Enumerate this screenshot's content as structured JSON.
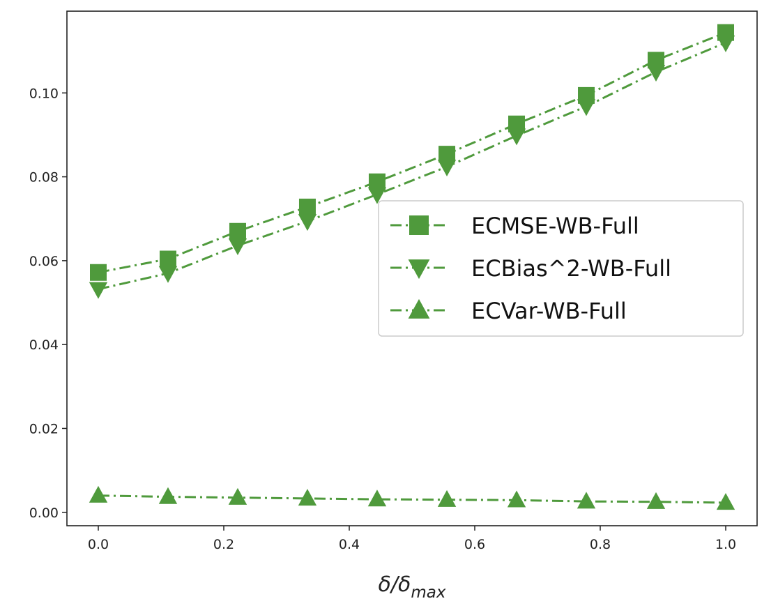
{
  "chart_data": {
    "type": "line",
    "title": "",
    "xlabel": "δ/δ",
    "xlabel_sub": "max",
    "ylabel": "",
    "x": [
      0.0,
      0.1111,
      0.2222,
      0.3333,
      0.4444,
      0.5556,
      0.6667,
      0.7778,
      0.8889,
      1.0
    ],
    "xlim": [
      -0.05,
      1.05
    ],
    "ylim": [
      -0.0032,
      0.1195
    ],
    "xticks": [
      0.0,
      0.2,
      0.4,
      0.6,
      0.8,
      1.0
    ],
    "xtick_labels": [
      "0.0",
      "0.2",
      "0.4",
      "0.6",
      "0.8",
      "1.0"
    ],
    "yticks": [
      0.0,
      0.02,
      0.04,
      0.06,
      0.08,
      0.1
    ],
    "ytick_labels": [
      "0.00",
      "0.02",
      "0.04",
      "0.06",
      "0.08",
      "0.10"
    ],
    "grid": false,
    "legend_position": "center-right",
    "series": [
      {
        "name": "ECMSE-WB-Full",
        "marker": "square",
        "color": "#4f9a3c",
        "values": [
          0.0572,
          0.0604,
          0.067,
          0.0728,
          0.0788,
          0.0854,
          0.0926,
          0.0994,
          0.1078,
          0.1144
        ]
      },
      {
        "name": "ECBias^2-WB-Full",
        "marker": "triangle-down",
        "color": "#4f9a3c",
        "values": [
          0.0532,
          0.057,
          0.0636,
          0.0694,
          0.0758,
          0.0824,
          0.0898,
          0.0968,
          0.105,
          0.112
        ]
      },
      {
        "name": "ECVar-WB-Full",
        "marker": "triangle-up",
        "color": "#4f9a3c",
        "values": [
          0.004,
          0.0037,
          0.0035,
          0.0033,
          0.0031,
          0.003,
          0.0029,
          0.0026,
          0.0025,
          0.0023
        ]
      }
    ]
  }
}
